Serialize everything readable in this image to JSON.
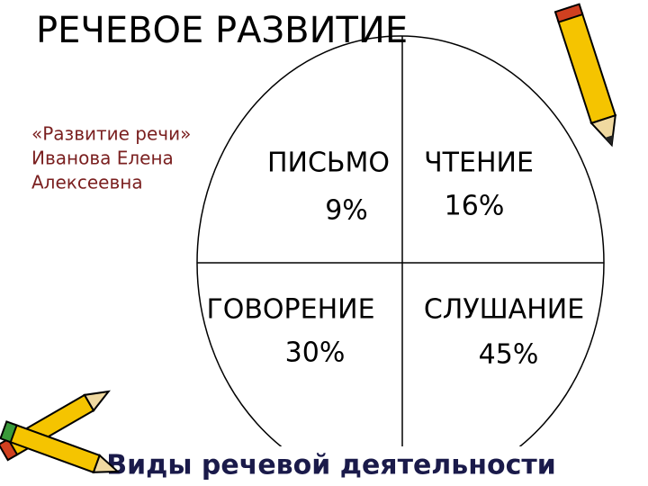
{
  "header": {
    "title": "РЕЧЕВОЕ РАЗВИТИЕ"
  },
  "author": {
    "lines": [
      "«Развитие речи»",
      "Иванова Елена",
      "Алексеевна"
    ]
  },
  "quadrants": [
    {
      "label": "ПИСЬМО",
      "percent": "9%"
    },
    {
      "label": "ЧТЕНИЕ",
      "percent": "16%"
    },
    {
      "label": "ГОВОРЕНИЕ",
      "percent": "30%"
    },
    {
      "label": "СЛУШАНИЕ",
      "percent": "45%"
    }
  ],
  "caption": "Виды речевой деятельности"
}
